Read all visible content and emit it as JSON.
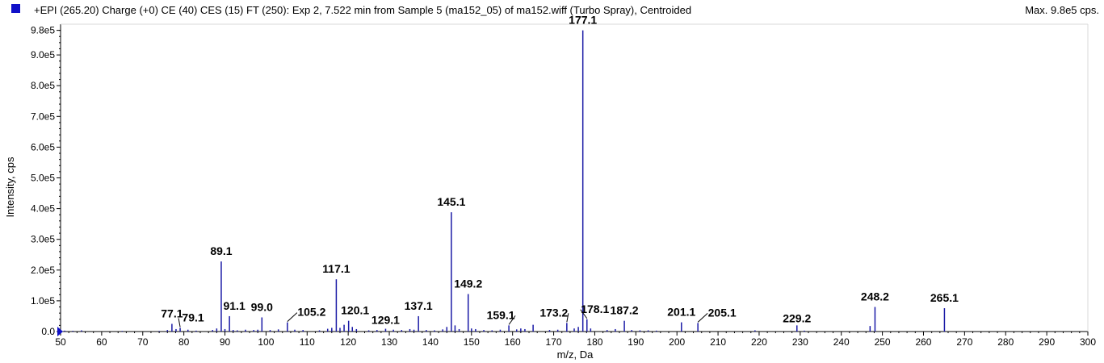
{
  "header": {
    "title": "+EPI (265.20) Charge (+0) CE (40) CES (15) FT (250): Exp 2, 7.522 min from Sample 5 (ma152_05) of ma152.wiff (Turbo Spray), Centroided",
    "max_label": "Max. 9.8e5 cps."
  },
  "colors": {
    "series": "#1a1aa6",
    "swatch": "#1010c8",
    "axis": "#000000"
  },
  "chart_data": {
    "type": "bar",
    "title": "+EPI (265.20) Charge (+0) CE (40) CES (15) FT (250): Exp 2, 7.522 min from Sample 5 (ma152_05) of ma152.wiff (Turbo Spray), Centroided",
    "xlabel": "m/z, Da",
    "ylabel": "Intensity, cps",
    "xlim": [
      50,
      300
    ],
    "ylim": [
      0,
      1000000
    ],
    "xticks": [
      50,
      60,
      70,
      80,
      90,
      100,
      110,
      120,
      130,
      140,
      150,
      160,
      170,
      180,
      190,
      200,
      210,
      220,
      230,
      240,
      250,
      260,
      270,
      280,
      290,
      300
    ],
    "yticks": [
      {
        "v": 0,
        "label": "0.0"
      },
      {
        "v": 100000,
        "label": "1.0e5"
      },
      {
        "v": 200000,
        "label": "2.0e5"
      },
      {
        "v": 300000,
        "label": "3.0e5"
      },
      {
        "v": 400000,
        "label": "4.0e5"
      },
      {
        "v": 500000,
        "label": "5.0e5"
      },
      {
        "v": 600000,
        "label": "6.0e5"
      },
      {
        "v": 700000,
        "label": "7.0e5"
      },
      {
        "v": 800000,
        "label": "8.0e5"
      },
      {
        "v": 900000,
        "label": "9.0e5"
      },
      {
        "v": 980000,
        "label": "9.8e5"
      }
    ],
    "peaks": [
      {
        "mz": 51.0,
        "i": 3000
      },
      {
        "mz": 53.0,
        "i": 2500
      },
      {
        "mz": 55.1,
        "i": 4000
      },
      {
        "mz": 65.0,
        "i": 2000
      },
      {
        "mz": 74.0,
        "i": 2000
      },
      {
        "mz": 76.0,
        "i": 5000
      },
      {
        "mz": 77.1,
        "i": 25000,
        "label": "77.1"
      },
      {
        "mz": 78.1,
        "i": 8000
      },
      {
        "mz": 79.1,
        "i": 12000,
        "label": "79.1"
      },
      {
        "mz": 81.0,
        "i": 6000
      },
      {
        "mz": 83.0,
        "i": 3000
      },
      {
        "mz": 87.0,
        "i": 5000
      },
      {
        "mz": 88.0,
        "i": 10000
      },
      {
        "mz": 89.1,
        "i": 228000,
        "label": "89.1"
      },
      {
        "mz": 90.0,
        "i": 8000
      },
      {
        "mz": 91.1,
        "i": 50000,
        "label": "91.1"
      },
      {
        "mz": 92.0,
        "i": 5000
      },
      {
        "mz": 93.0,
        "i": 4000
      },
      {
        "mz": 95.0,
        "i": 6000
      },
      {
        "mz": 97.0,
        "i": 5000
      },
      {
        "mz": 98.0,
        "i": 6000
      },
      {
        "mz": 99.0,
        "i": 46000,
        "label": "99.0"
      },
      {
        "mz": 101.0,
        "i": 5000
      },
      {
        "mz": 103.0,
        "i": 7000
      },
      {
        "mz": 105.2,
        "i": 30000,
        "label": "105.2"
      },
      {
        "mz": 107.0,
        "i": 6000
      },
      {
        "mz": 109.0,
        "i": 5000
      },
      {
        "mz": 113.0,
        "i": 4000
      },
      {
        "mz": 115.0,
        "i": 9000
      },
      {
        "mz": 116.0,
        "i": 12000
      },
      {
        "mz": 117.1,
        "i": 170000,
        "label": "117.1"
      },
      {
        "mz": 118.0,
        "i": 12000
      },
      {
        "mz": 119.0,
        "i": 22000
      },
      {
        "mz": 120.1,
        "i": 35000,
        "label": "120.1"
      },
      {
        "mz": 121.0,
        "i": 15000
      },
      {
        "mz": 122.0,
        "i": 8000
      },
      {
        "mz": 125.0,
        "i": 4000
      },
      {
        "mz": 127.0,
        "i": 5000
      },
      {
        "mz": 129.1,
        "i": 9000,
        "label": "129.1"
      },
      {
        "mz": 131.0,
        "i": 6000
      },
      {
        "mz": 133.0,
        "i": 5000
      },
      {
        "mz": 135.0,
        "i": 8000
      },
      {
        "mz": 136.0,
        "i": 6000
      },
      {
        "mz": 137.1,
        "i": 50000,
        "label": "137.1"
      },
      {
        "mz": 139.0,
        "i": 5000
      },
      {
        "mz": 141.0,
        "i": 4000
      },
      {
        "mz": 143.0,
        "i": 7000
      },
      {
        "mz": 144.0,
        "i": 15000
      },
      {
        "mz": 145.1,
        "i": 388000,
        "label": "145.1"
      },
      {
        "mz": 146.0,
        "i": 20000
      },
      {
        "mz": 147.0,
        "i": 8000
      },
      {
        "mz": 149.2,
        "i": 122000,
        "label": "149.2"
      },
      {
        "mz": 150.0,
        "i": 10000
      },
      {
        "mz": 151.0,
        "i": 8000
      },
      {
        "mz": 153.0,
        "i": 5000
      },
      {
        "mz": 155.0,
        "i": 4000
      },
      {
        "mz": 157.0,
        "i": 6000
      },
      {
        "mz": 159.1,
        "i": 20000,
        "label": "159.1"
      },
      {
        "mz": 161.0,
        "i": 7000
      },
      {
        "mz": 162.0,
        "i": 10000
      },
      {
        "mz": 163.0,
        "i": 8000
      },
      {
        "mz": 165.0,
        "i": 22000
      },
      {
        "mz": 169.0,
        "i": 5000
      },
      {
        "mz": 171.0,
        "i": 6000
      },
      {
        "mz": 173.2,
        "i": 28000,
        "label": "173.2"
      },
      {
        "mz": 175.0,
        "i": 10000
      },
      {
        "mz": 176.0,
        "i": 15000
      },
      {
        "mz": 177.1,
        "i": 980000,
        "label": "177.1"
      },
      {
        "mz": 178.1,
        "i": 40000,
        "label": "178.1"
      },
      {
        "mz": 179.0,
        "i": 10000
      },
      {
        "mz": 183.0,
        "i": 5000
      },
      {
        "mz": 185.0,
        "i": 8000
      },
      {
        "mz": 187.2,
        "i": 35000,
        "label": "187.2"
      },
      {
        "mz": 189.0,
        "i": 5000
      },
      {
        "mz": 191.0,
        "i": 4000
      },
      {
        "mz": 193.0,
        "i": 4000
      },
      {
        "mz": 195.0,
        "i": 3000
      },
      {
        "mz": 201.1,
        "i": 30000,
        "label": "201.1"
      },
      {
        "mz": 205.1,
        "i": 28000,
        "label": "205.1"
      },
      {
        "mz": 219.0,
        "i": 4000
      },
      {
        "mz": 229.2,
        "i": 20000,
        "label": "229.2"
      },
      {
        "mz": 231.0,
        "i": 3000
      },
      {
        "mz": 247.0,
        "i": 18000
      },
      {
        "mz": 248.2,
        "i": 80000,
        "label": "248.2"
      },
      {
        "mz": 265.1,
        "i": 76000,
        "label": "265.1"
      }
    ]
  }
}
